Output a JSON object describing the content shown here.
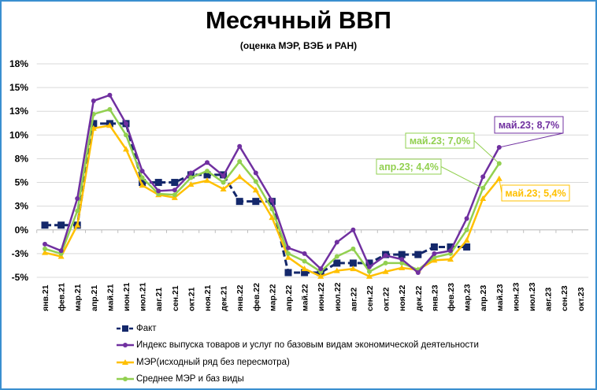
{
  "chart_data": {
    "type": "line",
    "title": "Месячный ВВП",
    "subtitle": "(оценка МЭР, ВЭБ и РАН)",
    "categories": [
      "янв.21",
      "фев.21",
      "мар.21",
      "апр.21",
      "май.21",
      "июн.21",
      "июл.21",
      "авг.21",
      "сен.21",
      "окт.21",
      "ноя.21",
      "дек.21",
      "янв.22",
      "фев.22",
      "мар.22",
      "апр.22",
      "май.22",
      "июн.22",
      "июл.22",
      "авг.22",
      "сен.22",
      "окт.22",
      "ноя.22",
      "дек.22",
      "янв.23",
      "фев.23",
      "мар.23",
      "апр.23",
      "май.23",
      "июн.23",
      "июл.23",
      "авг.23",
      "сен.23",
      "окт.23"
    ],
    "ylim": [
      -5,
      17.5
    ],
    "yticks": [
      -5,
      -2.5,
      0,
      2.5,
      5,
      7.5,
      10,
      12.5,
      15,
      17.5
    ],
    "ytick_labels": [
      "-5%",
      "-3%",
      "0%",
      "3%",
      "5%",
      "8%",
      "10%",
      "13%",
      "15%",
      "18%"
    ],
    "grid": true,
    "legend_position": "bottom",
    "series": [
      {
        "name": "Факт",
        "color": "#14286b",
        "marker": "square",
        "dashed": true,
        "values": [
          0.5,
          0.5,
          0.5,
          11.2,
          11.2,
          11.2,
          5.0,
          5.0,
          5.0,
          5.8,
          5.8,
          5.8,
          3.0,
          3.0,
          3.0,
          -4.5,
          -4.5,
          -4.5,
          -3.5,
          -3.5,
          -3.5,
          -2.6,
          -2.6,
          -2.6,
          -1.8,
          -1.8,
          -1.8,
          null,
          null,
          null,
          null,
          null,
          null,
          null
        ]
      },
      {
        "name": "Индекс выпуска товаров и услуг по базовым видам экономической деятельности",
        "color": "#7030a0",
        "marker": "circle",
        "dashed": false,
        "values": [
          -1.5,
          -2.2,
          3.3,
          13.6,
          14.2,
          11.2,
          6.2,
          4.1,
          4.2,
          6.0,
          7.1,
          5.7,
          8.8,
          6.0,
          3.1,
          -1.9,
          -2.5,
          -4.1,
          -1.3,
          0.0,
          -3.9,
          -2.7,
          -3.1,
          -4.5,
          -2.5,
          -2.2,
          1.2,
          5.6,
          8.7,
          null,
          null,
          null,
          null,
          null
        ]
      },
      {
        "name": "МЭР(исходный ряд без пересмотра)",
        "color": "#ffc000",
        "marker": "triangle",
        "dashed": false,
        "values": [
          -2.4,
          -2.8,
          0.5,
          10.7,
          11.0,
          8.5,
          4.7,
          3.7,
          3.4,
          4.8,
          5.2,
          4.3,
          5.6,
          4.2,
          1.3,
          -2.9,
          -4.1,
          -4.9,
          -4.3,
          -4.1,
          -4.9,
          -4.4,
          -4.0,
          -4.2,
          -3.2,
          -3.1,
          -1.1,
          3.3,
          5.4,
          null,
          null,
          null,
          null,
          null
        ]
      },
      {
        "name": "Среднее МЭР и баз виды",
        "color": "#92d050",
        "marker": "circle",
        "dashed": false,
        "values": [
          -2.0,
          -2.5,
          2.0,
          12.2,
          12.7,
          10.0,
          5.5,
          3.8,
          3.7,
          5.5,
          6.2,
          5.0,
          7.2,
          5.1,
          2.2,
          -2.5,
          -3.3,
          -4.4,
          -2.8,
          -2.0,
          -4.4,
          -3.5,
          -3.5,
          -4.2,
          -2.9,
          -2.5,
          0.0,
          4.4,
          7.0,
          null,
          null,
          null,
          null,
          null
        ]
      }
    ],
    "annotations": [
      {
        "text": "май.23; 8,7%",
        "series": 1,
        "category": "май.23",
        "color": "#7030a0"
      },
      {
        "text": "май.23; 7,0%",
        "series": 3,
        "category": "май.23",
        "color": "#92d050"
      },
      {
        "text": "апр.23; 4,4%",
        "series": 3,
        "category": "апр.23",
        "color": "#92d050"
      },
      {
        "text": "май.23; 5,4%",
        "series": 2,
        "category": "май.23",
        "color": "#ffc000"
      }
    ]
  }
}
